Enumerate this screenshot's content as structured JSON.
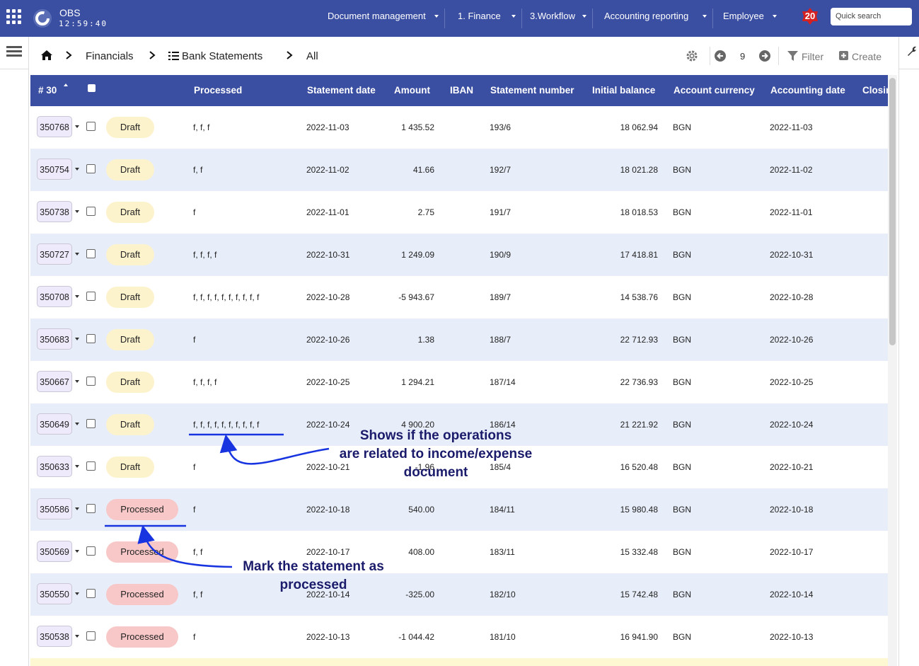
{
  "header": {
    "app_name": "OBS",
    "clock": "12:59:40",
    "menu": [
      "Document management",
      "1. Finance",
      "3.Workflow",
      "Accounting reporting",
      "Employee"
    ],
    "notification_count": "20",
    "search_placeholder": "Quick search"
  },
  "breadcrumb": {
    "items": [
      "Financials",
      "Bank Statements",
      "All"
    ],
    "page": "9",
    "filter": "Filter",
    "create": "Create"
  },
  "table": {
    "columns": [
      "# 30",
      "Processed",
      "Statement date",
      "Amount",
      "IBAN",
      "Statement number",
      "Initial balance",
      "Account currency",
      "Accounting date",
      "Closing"
    ],
    "rows": [
      [
        "350768",
        "Draft",
        "f, f, f",
        "2022-11-03",
        "1 435.52",
        "193/6",
        "18 062.94",
        "BGN",
        "2022-11-03"
      ],
      [
        "350754",
        "Draft",
        "f, f",
        "2022-11-02",
        "41.66",
        "192/7",
        "18 021.28",
        "BGN",
        "2022-11-02"
      ],
      [
        "350738",
        "Draft",
        "f",
        "2022-11-01",
        "2.75",
        "191/7",
        "18 018.53",
        "BGN",
        "2022-11-01"
      ],
      [
        "350727",
        "Draft",
        "f, f, f, f",
        "2022-10-31",
        "1 249.09",
        "190/9",
        "17 418.81",
        "BGN",
        "2022-10-31"
      ],
      [
        "350708",
        "Draft",
        "f, f, f, f, f, f, f, f, f, f",
        "2022-10-28",
        "-5 943.67",
        "189/7",
        "14 538.76",
        "BGN",
        "2022-10-28"
      ],
      [
        "350683",
        "Draft",
        "f",
        "2022-10-26",
        "1.38",
        "188/7",
        "22 712.93",
        "BGN",
        "2022-10-26"
      ],
      [
        "350667",
        "Draft",
        "f, f, f, f",
        "2022-10-25",
        "1 294.21",
        "187/14",
        "22 736.93",
        "BGN",
        "2022-10-25"
      ],
      [
        "350649",
        "Draft",
        "f, f, f, f, f, f, f, f, f, f",
        "2022-10-24",
        "4 900.20",
        "186/14",
        "21 221.92",
        "BGN",
        "2022-10-24"
      ],
      [
        "350633",
        "Draft",
        "f",
        "2022-10-21",
        "-1.96",
        "185/4",
        "16 520.48",
        "BGN",
        "2022-10-21"
      ],
      [
        "350586",
        "Processed",
        "f",
        "2022-10-18",
        "540.00",
        "184/11",
        "15 980.48",
        "BGN",
        "2022-10-18"
      ],
      [
        "350569",
        "Processed",
        "f, f",
        "2022-10-17",
        "408.00",
        "183/11",
        "15 332.48",
        "BGN",
        "2022-10-17"
      ],
      [
        "350550",
        "Processed",
        "f, f",
        "2022-10-14",
        "-325.00",
        "182/10",
        "15 742.48",
        "BGN",
        "2022-10-14"
      ],
      [
        "350538",
        "Processed",
        "f",
        "2022-10-13",
        "-1 044.42",
        "181/10",
        "16 941.90",
        "BGN",
        "2022-10-13"
      ]
    ]
  },
  "annotations": [
    {
      "text_lines": [
        "Shows if the operations",
        "are related to income/expense",
        "document"
      ]
    },
    {
      "text_lines": [
        "Mark the statement as",
        "processed"
      ]
    }
  ]
}
